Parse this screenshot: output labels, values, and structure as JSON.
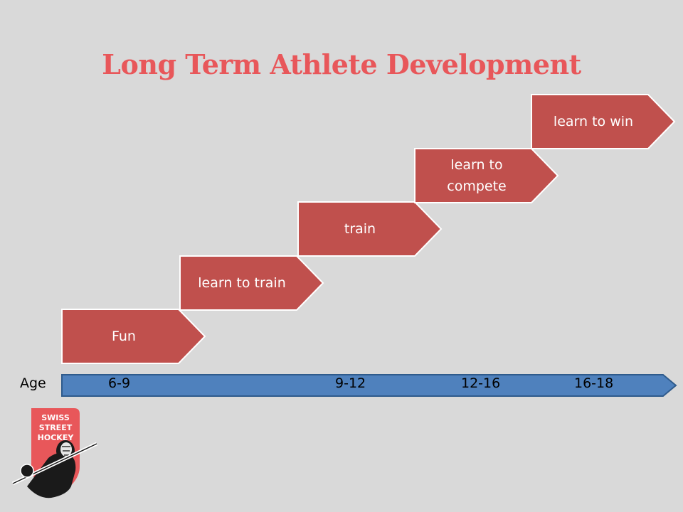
{
  "title": "Long Term Athlete Development",
  "steps": [
    {
      "label": "Fun",
      "age": "6-9"
    },
    {
      "label": "learn  to train",
      "age": ""
    },
    {
      "label": "train",
      "age": "9-12"
    },
    {
      "label": "learn to\ncompete",
      "age": "12-16"
    },
    {
      "label": "learn to win",
      "age": "16-18"
    }
  ],
  "axis": {
    "label": "Age",
    "ticks": [
      "6-9",
      "9-12",
      "12-16",
      "16-18"
    ]
  },
  "logo": {
    "lines": [
      "SWISS",
      "STREET",
      "HOCKEY"
    ]
  },
  "colors": {
    "background": "#d9d9d9",
    "title": "#e8575a",
    "step_fill": "#c0504d",
    "axis_fill": "#4f81bd",
    "logo_red": "#e8575a"
  }
}
